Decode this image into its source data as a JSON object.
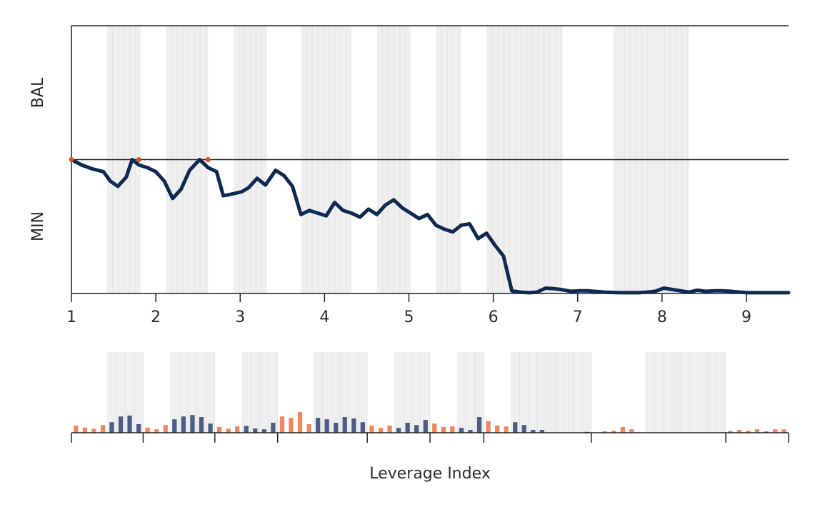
{
  "chart_data": [
    {
      "type": "line",
      "title": "",
      "y_category_labels": [
        "BAL",
        "MIN"
      ],
      "x_tick_labels": [
        "1",
        "2",
        "3",
        "4",
        "5",
        "6",
        "7",
        "8",
        "9"
      ],
      "x_tick_values": [
        1,
        2,
        3,
        4,
        5,
        6,
        7,
        8,
        9
      ],
      "xlim": [
        1,
        9.5
      ],
      "ylim": [
        0,
        1
      ],
      "reference_line_y": 0.5,
      "shaded_bands": [
        [
          1.42,
          1.82
        ],
        [
          2.12,
          2.62
        ],
        [
          2.92,
          3.32
        ],
        [
          3.72,
          4.32
        ],
        [
          4.62,
          5.02
        ],
        [
          5.32,
          5.62
        ],
        [
          5.92,
          6.82
        ],
        [
          7.42,
          8.32
        ]
      ],
      "series": [
        {
          "color": "#0d2a52",
          "x": [
            1.0,
            1.12,
            1.25,
            1.38,
            1.46,
            1.55,
            1.65,
            1.72,
            1.8,
            1.9,
            2.0,
            2.1,
            2.2,
            2.3,
            2.4,
            2.52,
            2.62,
            2.72,
            2.8,
            2.88,
            3.02,
            3.1,
            3.2,
            3.3,
            3.42,
            3.52,
            3.62,
            3.72,
            3.82,
            3.92,
            4.02,
            4.12,
            4.22,
            4.32,
            4.42,
            4.52,
            4.62,
            4.72,
            4.82,
            4.92,
            5.02,
            5.12,
            5.22,
            5.32,
            5.42,
            5.52,
            5.62,
            5.72,
            5.82,
            5.92,
            6.02,
            6.12,
            6.22,
            6.32,
            6.42,
            6.52,
            6.62,
            6.72,
            6.8,
            6.92,
            7.02,
            7.12,
            7.32,
            7.5,
            7.62,
            7.72,
            7.82,
            7.92,
            8.02,
            8.12,
            8.22,
            8.32,
            8.42,
            8.52,
            8.62,
            8.72,
            8.82,
            8.92,
            9.02,
            9.12,
            9.22,
            9.32,
            9.42,
            9.5
          ],
          "y": [
            0.5,
            0.48,
            0.465,
            0.455,
            0.42,
            0.4,
            0.435,
            0.5,
            0.48,
            0.47,
            0.455,
            0.42,
            0.355,
            0.39,
            0.46,
            0.5,
            0.47,
            0.455,
            0.365,
            0.37,
            0.38,
            0.395,
            0.43,
            0.405,
            0.46,
            0.44,
            0.4,
            0.295,
            0.31,
            0.3,
            0.29,
            0.34,
            0.31,
            0.3,
            0.285,
            0.315,
            0.295,
            0.33,
            0.35,
            0.32,
            0.3,
            0.28,
            0.295,
            0.255,
            0.24,
            0.23,
            0.255,
            0.26,
            0.205,
            0.225,
            0.18,
            0.14,
            0.01,
            0.005,
            0.003,
            0.005,
            0.02,
            0.018,
            0.015,
            0.008,
            0.01,
            0.01,
            0.005,
            0.003,
            0.003,
            0.003,
            0.005,
            0.008,
            0.02,
            0.015,
            0.01,
            0.005,
            0.012,
            0.008,
            0.01,
            0.01,
            0.008,
            0.005,
            0.003,
            0.003,
            0.003,
            0.003,
            0.003,
            0.003
          ]
        }
      ],
      "markers": [
        {
          "x": 1.0,
          "y": 0.5,
          "color": "#d9531e"
        },
        {
          "x": 1.8,
          "y": 0.5,
          "color": "#d9531e"
        },
        {
          "x": 2.62,
          "y": 0.5,
          "color": "#d9531e"
        }
      ]
    },
    {
      "type": "bar",
      "title": "",
      "xlabel": "Leverage Index",
      "xlim": [
        0,
        80
      ],
      "ylim": [
        0,
        1
      ],
      "colors": {
        "positive": "#4c5e85",
        "negative": "#f0875f"
      },
      "tick_positions": [
        0,
        8,
        16,
        23,
        33,
        40,
        46,
        58,
        73
      ],
      "shaded_bands": [
        [
          4,
          8
        ],
        [
          11,
          16
        ],
        [
          19,
          23
        ],
        [
          27,
          33
        ],
        [
          36,
          40
        ],
        [
          43,
          46
        ],
        [
          49,
          58
        ],
        [
          64,
          73
        ]
      ],
      "bars": [
        {
          "x": 0.5,
          "value": 0.25,
          "sign": "negative"
        },
        {
          "x": 1.5,
          "value": 0.18,
          "sign": "negative"
        },
        {
          "x": 2.5,
          "value": 0.14,
          "sign": "negative"
        },
        {
          "x": 3.5,
          "value": 0.27,
          "sign": "negative"
        },
        {
          "x": 4.5,
          "value": 0.37,
          "sign": "positive"
        },
        {
          "x": 5.5,
          "value": 0.57,
          "sign": "positive"
        },
        {
          "x": 6.5,
          "value": 0.6,
          "sign": "positive"
        },
        {
          "x": 7.5,
          "value": 0.3,
          "sign": "positive"
        },
        {
          "x": 8.5,
          "value": 0.18,
          "sign": "negative"
        },
        {
          "x": 9.5,
          "value": 0.12,
          "sign": "negative"
        },
        {
          "x": 10.5,
          "value": 0.27,
          "sign": "negative"
        },
        {
          "x": 11.5,
          "value": 0.47,
          "sign": "positive"
        },
        {
          "x": 12.5,
          "value": 0.57,
          "sign": "positive"
        },
        {
          "x": 13.5,
          "value": 0.62,
          "sign": "positive"
        },
        {
          "x": 14.5,
          "value": 0.55,
          "sign": "positive"
        },
        {
          "x": 15.5,
          "value": 0.32,
          "sign": "positive"
        },
        {
          "x": 16.5,
          "value": 0.2,
          "sign": "negative"
        },
        {
          "x": 17.5,
          "value": 0.14,
          "sign": "negative"
        },
        {
          "x": 18.5,
          "value": 0.22,
          "sign": "negative"
        },
        {
          "x": 19.5,
          "value": 0.24,
          "sign": "positive"
        },
        {
          "x": 20.5,
          "value": 0.15,
          "sign": "positive"
        },
        {
          "x": 21.5,
          "value": 0.12,
          "sign": "positive"
        },
        {
          "x": 22.5,
          "value": 0.35,
          "sign": "positive"
        },
        {
          "x": 23.5,
          "value": 0.57,
          "sign": "negative"
        },
        {
          "x": 24.5,
          "value": 0.52,
          "sign": "negative"
        },
        {
          "x": 25.5,
          "value": 0.72,
          "sign": "negative"
        },
        {
          "x": 26.5,
          "value": 0.3,
          "sign": "negative"
        },
        {
          "x": 27.5,
          "value": 0.52,
          "sign": "positive"
        },
        {
          "x": 28.5,
          "value": 0.47,
          "sign": "positive"
        },
        {
          "x": 29.5,
          "value": 0.35,
          "sign": "positive"
        },
        {
          "x": 30.5,
          "value": 0.55,
          "sign": "positive"
        },
        {
          "x": 31.5,
          "value": 0.5,
          "sign": "positive"
        },
        {
          "x": 32.5,
          "value": 0.37,
          "sign": "positive"
        },
        {
          "x": 33.5,
          "value": 0.25,
          "sign": "negative"
        },
        {
          "x": 34.5,
          "value": 0.17,
          "sign": "negative"
        },
        {
          "x": 35.5,
          "value": 0.25,
          "sign": "negative"
        },
        {
          "x": 36.5,
          "value": 0.17,
          "sign": "positive"
        },
        {
          "x": 37.5,
          "value": 0.35,
          "sign": "positive"
        },
        {
          "x": 38.5,
          "value": 0.27,
          "sign": "positive"
        },
        {
          "x": 39.5,
          "value": 0.45,
          "sign": "positive"
        },
        {
          "x": 40.5,
          "value": 0.32,
          "sign": "negative"
        },
        {
          "x": 41.5,
          "value": 0.2,
          "sign": "negative"
        },
        {
          "x": 42.5,
          "value": 0.22,
          "sign": "negative"
        },
        {
          "x": 43.5,
          "value": 0.17,
          "sign": "positive"
        },
        {
          "x": 44.5,
          "value": 0.1,
          "sign": "positive"
        },
        {
          "x": 45.5,
          "value": 0.55,
          "sign": "positive"
        },
        {
          "x": 46.5,
          "value": 0.4,
          "sign": "negative"
        },
        {
          "x": 47.5,
          "value": 0.25,
          "sign": "negative"
        },
        {
          "x": 48.5,
          "value": 0.22,
          "sign": "negative"
        },
        {
          "x": 49.5,
          "value": 0.37,
          "sign": "positive"
        },
        {
          "x": 50.5,
          "value": 0.27,
          "sign": "positive"
        },
        {
          "x": 51.5,
          "value": 0.1,
          "sign": "positive"
        },
        {
          "x": 52.5,
          "value": 0.1,
          "sign": "positive"
        },
        {
          "x": 57.5,
          "value": 0.03,
          "sign": "positive"
        },
        {
          "x": 59.5,
          "value": 0.05,
          "sign": "negative"
        },
        {
          "x": 60.5,
          "value": 0.07,
          "sign": "negative"
        },
        {
          "x": 61.5,
          "value": 0.2,
          "sign": "negative"
        },
        {
          "x": 62.5,
          "value": 0.12,
          "sign": "negative"
        },
        {
          "x": 73.5,
          "value": 0.06,
          "sign": "negative"
        },
        {
          "x": 74.5,
          "value": 0.1,
          "sign": "negative"
        },
        {
          "x": 75.5,
          "value": 0.07,
          "sign": "negative"
        },
        {
          "x": 76.5,
          "value": 0.12,
          "sign": "negative"
        },
        {
          "x": 77.5,
          "value": 0.04,
          "sign": "positive"
        },
        {
          "x": 78.5,
          "value": 0.12,
          "sign": "negative"
        },
        {
          "x": 79.5,
          "value": 0.12,
          "sign": "negative"
        }
      ]
    }
  ]
}
